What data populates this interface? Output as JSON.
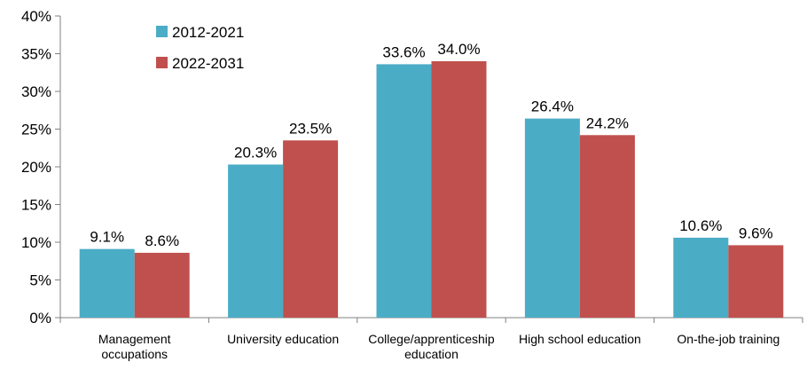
{
  "chart_data": {
    "type": "bar",
    "categories": [
      [
        "Management",
        "occupations"
      ],
      [
        "University education"
      ],
      [
        "College/apprenticeship",
        "education"
      ],
      [
        "High school education"
      ],
      [
        "On-the-job training"
      ]
    ],
    "series": [
      {
        "name": "2012-2021",
        "color": "#4BACC6",
        "values": [
          9.1,
          20.3,
          33.6,
          26.4,
          10.6
        ],
        "labels": [
          "9.1%",
          "20.3%",
          "33.6%",
          "26.4%",
          "10.6%"
        ]
      },
      {
        "name": "2022-2031",
        "color": "#C0504D",
        "values": [
          8.6,
          23.5,
          34.0,
          24.2,
          9.6
        ],
        "labels": [
          "8.6%",
          "23.5%",
          "34.0%",
          "24.2%",
          "9.6%"
        ]
      }
    ],
    "y_ticks": [
      0,
      5,
      10,
      15,
      20,
      25,
      30,
      35,
      40
    ],
    "y_tick_labels": [
      "0%",
      "5%",
      "10%",
      "15%",
      "20%",
      "25%",
      "30%",
      "35%",
      "40%"
    ],
    "ylim": [
      0,
      40
    ],
    "grid": false,
    "legend_position": "top-left",
    "title": "",
    "xlabel": "",
    "ylabel": ""
  }
}
